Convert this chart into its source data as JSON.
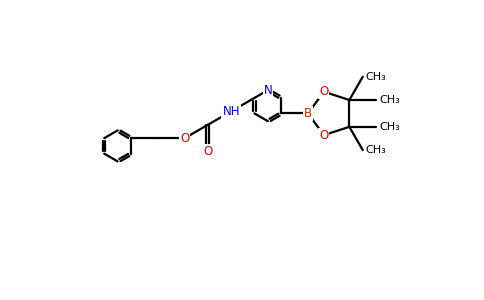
{
  "background_color": "#ffffff",
  "figsize": [
    4.84,
    3.0
  ],
  "dpi": 100,
  "bond_color": "#000000",
  "bond_width": 1.6,
  "atom_colors": {
    "N": "#0000ee",
    "O": "#ee0000",
    "B": "#bb3300",
    "C": "#000000"
  },
  "font_size": 8.5,
  "font_size_ch3": 8.0,
  "xlim": [
    0,
    10
  ],
  "ylim": [
    0,
    6.2
  ]
}
